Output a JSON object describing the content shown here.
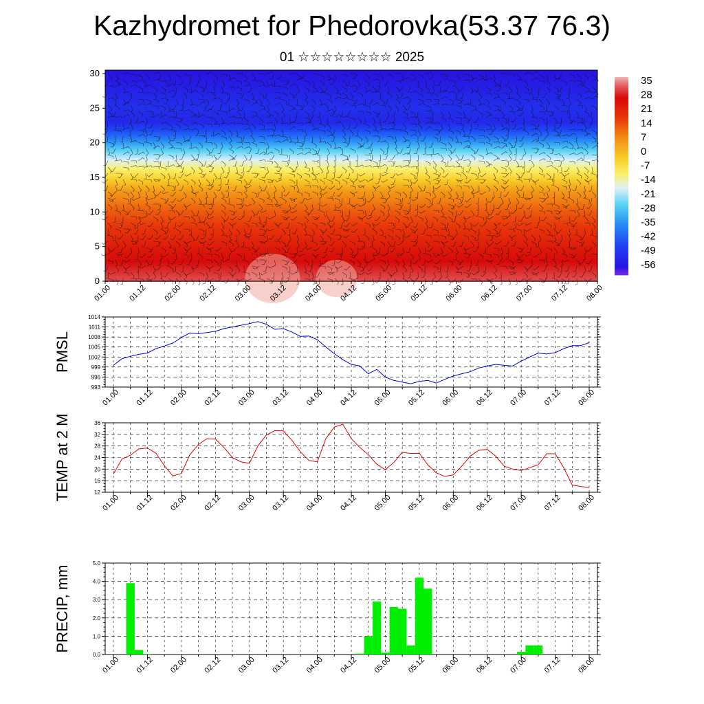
{
  "header": {
    "title": "Kazhydromet for Phedorovka(53.37 76.3)",
    "subtitle": "01 ☆☆☆☆☆☆☆☆ 2025"
  },
  "chart_data": [
    {
      "type": "heatmap",
      "title": "",
      "x_tick_labels": [
        "01.00",
        "01.12",
        "02.00",
        "02.12",
        "03.00",
        "03.12",
        "04.00",
        "04.12",
        "05.00",
        "05.12",
        "06.00",
        "06.12",
        "07.00",
        "07.12",
        "08.00"
      ],
      "y_tick_labels": [
        "0",
        "5",
        "10",
        "15",
        "20",
        "25",
        "30"
      ],
      "ylim": [
        0,
        30.5
      ],
      "colorbar_labels": [
        "35",
        "28",
        "21",
        "14",
        "7",
        "0",
        "-7",
        "-14",
        "-21",
        "-28",
        "-35",
        "-42",
        "-49",
        "-56"
      ],
      "colorbar_range": [
        -60,
        38
      ],
      "temperature_profile": [
        {
          "level": 0,
          "value": 33
        },
        {
          "level": 5,
          "value": 24
        },
        {
          "level": 10,
          "value": 14
        },
        {
          "level": 13,
          "value": 6
        },
        {
          "level": 15,
          "value": -4
        },
        {
          "level": 17,
          "value": -14
        },
        {
          "level": 19,
          "value": -26
        },
        {
          "level": 21,
          "value": -40
        },
        {
          "level": 23,
          "value": -52
        },
        {
          "level": 25,
          "value": -50
        },
        {
          "level": 30,
          "value": -56
        }
      ],
      "colors": {
        "warm": "#e01010",
        "cold": "#1616e0",
        "mid": "#f2e040"
      }
    },
    {
      "type": "line",
      "ylabel": "PMSL",
      "x_tick_labels": [
        "01.00",
        "01.12",
        "02.00",
        "02.12",
        "03.00",
        "03.12",
        "04.00",
        "04.12",
        "05.00",
        "05.12",
        "06.00",
        "06.12",
        "07.00",
        "07.12",
        "08.00"
      ],
      "y_tick_labels": [
        "993",
        "996",
        "999",
        "1002",
        "1005",
        "1008",
        "1011",
        "1014"
      ],
      "ylim": [
        993,
        1014
      ],
      "x": [
        0,
        1,
        2,
        3,
        4,
        5,
        6,
        7,
        8,
        9,
        10,
        11,
        12,
        13,
        14,
        15,
        16,
        17,
        18,
        19,
        20,
        21,
        22,
        23,
        24,
        25,
        26,
        27,
        28,
        29,
        30,
        31,
        32,
        33,
        34,
        35,
        36,
        37,
        38,
        39,
        40,
        41,
        42,
        43,
        44,
        45,
        46,
        47,
        48,
        49,
        50,
        51,
        52,
        53,
        54,
        55,
        56
      ],
      "series": [
        {
          "color": "#0000dd",
          "values": [
            999.5,
            1001.5,
            1002.2,
            1002.8,
            1003.2,
            1004.5,
            1005.3,
            1006.2,
            1007.8,
            1009.2,
            1009.0,
            1009.3,
            1009.7,
            1010.5,
            1011.0,
            1011.5,
            1012.0,
            1012.6,
            1011.8,
            1010.3,
            1010.5,
            1009.5,
            1008.2,
            1008.3,
            1007.2,
            1005.0,
            1003.0,
            1001.2,
            999.8,
            999.3,
            997.0,
            998.3,
            996.0,
            995.0,
            994.5,
            994.0,
            994.7,
            995.0,
            994.2,
            995.3,
            996.3,
            997.0,
            997.6,
            998.7,
            999.3,
            999.8,
            999.5,
            999.3,
            1000.8,
            1002.0,
            1003.2,
            1002.9,
            1003.3,
            1004.5,
            1005.4,
            1005.4,
            1006.3
          ]
        }
      ]
    },
    {
      "type": "line",
      "ylabel": "TEMP at 2 M",
      "x_tick_labels": [
        "01.00",
        "01.12",
        "02.00",
        "02.12",
        "03.00",
        "03.12",
        "04.00",
        "04.12",
        "05.00",
        "05.12",
        "06.00",
        "06.12",
        "07.00",
        "07.12",
        "08.00"
      ],
      "y_tick_labels": [
        "12",
        "16",
        "20",
        "24",
        "28",
        "32",
        "36"
      ],
      "ylim": [
        12,
        36
      ],
      "x": [
        0,
        1,
        2,
        3,
        4,
        5,
        6,
        7,
        8,
        9,
        10,
        11,
        12,
        13,
        14,
        15,
        16,
        17,
        18,
        19,
        20,
        21,
        22,
        23,
        24,
        25,
        26,
        27,
        28,
        29,
        30,
        31,
        32,
        33,
        34,
        35,
        36,
        37,
        38,
        39,
        40,
        41,
        42,
        43,
        44,
        45,
        46,
        47,
        48,
        49,
        50,
        51,
        52,
        53,
        54,
        55,
        56
      ],
      "series": [
        {
          "color": "#dd0000",
          "values": [
            18.3,
            23.5,
            24.8,
            27.0,
            27.3,
            25.5,
            21.2,
            17.6,
            18.5,
            25.0,
            28.5,
            30.5,
            30.4,
            27.5,
            24.0,
            22.5,
            22.0,
            28.0,
            31.8,
            33.3,
            33.2,
            30.0,
            26.0,
            23.0,
            22.5,
            30.5,
            34.5,
            35.5,
            30.5,
            27.5,
            25.0,
            21.7,
            19.8,
            22.3,
            25.8,
            25.4,
            25.5,
            21.5,
            18.7,
            17.5,
            18.0,
            21.0,
            24.5,
            26.5,
            26.8,
            24.5,
            21.0,
            20.0,
            19.5,
            20.5,
            21.5,
            25.3,
            25.3,
            20.5,
            14.5,
            14.0,
            13.6
          ]
        }
      ]
    },
    {
      "type": "bar",
      "ylabel": "PRECIP, mm",
      "x_tick_labels": [
        "01.00",
        "01.12",
        "02.00",
        "02.12",
        "03.00",
        "03.12",
        "04.00",
        "04.12",
        "05.00",
        "05.12",
        "06.00",
        "06.12",
        "07.00",
        "07.12",
        "08.00"
      ],
      "y_tick_labels": [
        "0.0",
        "1.0",
        "2.0",
        "3.0",
        "4.0",
        "5.0"
      ],
      "ylim": [
        0,
        5
      ],
      "bar_color": "#00ee00",
      "x": [
        2,
        3,
        4,
        29,
        30,
        31,
        32,
        33,
        34,
        35,
        36,
        37,
        48,
        49,
        50
      ],
      "values": [
        3.9,
        0.25,
        0.03,
        0.05,
        1.0,
        2.9,
        0.1,
        2.6,
        2.5,
        0.5,
        4.2,
        3.6,
        0.15,
        0.5,
        0.5
      ]
    }
  ]
}
